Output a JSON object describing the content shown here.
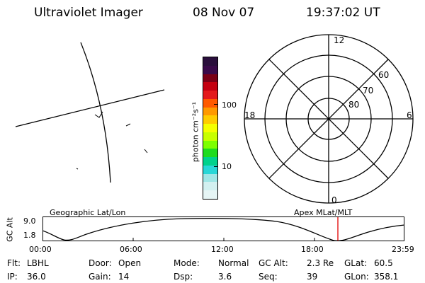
{
  "header": {
    "title": "Ultraviolet Imager",
    "date": "08 Nov 07",
    "time": "19:37:02 UT"
  },
  "colorbar": {
    "unit_label": "photon cm⁻²s⁻¹",
    "ticks": [
      "100",
      "10"
    ],
    "colors": [
      "#2a0f3c",
      "#3a0a4a",
      "#7a0016",
      "#c40010",
      "#e41a1c",
      "#ff5a00",
      "#ff9900",
      "#ffcc00",
      "#f5ff00",
      "#c8ff00",
      "#7dff00",
      "#1edc1e",
      "#00d28c",
      "#28d7d7",
      "#a0e6e6",
      "#d2f0f0",
      "#e6f5f5"
    ]
  },
  "polar": {
    "mlt_labels": {
      "top": "12",
      "left": "18",
      "right": "6",
      "bottom": "0"
    },
    "lat_labels": [
      "60",
      "70",
      "80"
    ]
  },
  "timeline": {
    "left_label": "Geographic Lat/Lon",
    "right_label": "Apex  MLat/MLT",
    "ylabel": "GC Alt",
    "y_ticks": [
      "9.0",
      "1.8"
    ],
    "x_ticks": [
      "00:00",
      "06:00",
      "12:00",
      "18:00",
      "23:59"
    ],
    "marker_color": "#e00000"
  },
  "info_rows": [
    [
      {
        "k": "Flt:",
        "v": "LBHL"
      },
      {
        "k": "Door:",
        "v": "Open"
      },
      {
        "k": "Mode:",
        "v": "Normal"
      },
      {
        "k": "GC Alt:",
        "v": "2.3 Re"
      },
      {
        "k": "GLat:",
        "v": "60.5"
      }
    ],
    [
      {
        "k": "IP:",
        "v": "36.0"
      },
      {
        "k": "Gain:",
        "v": "14"
      },
      {
        "k": "Dsp:",
        "v": "3.6"
      },
      {
        "k": "Seq:",
        "v": "39"
      },
      {
        "k": "GLon:",
        "v": "358.1"
      }
    ]
  ]
}
